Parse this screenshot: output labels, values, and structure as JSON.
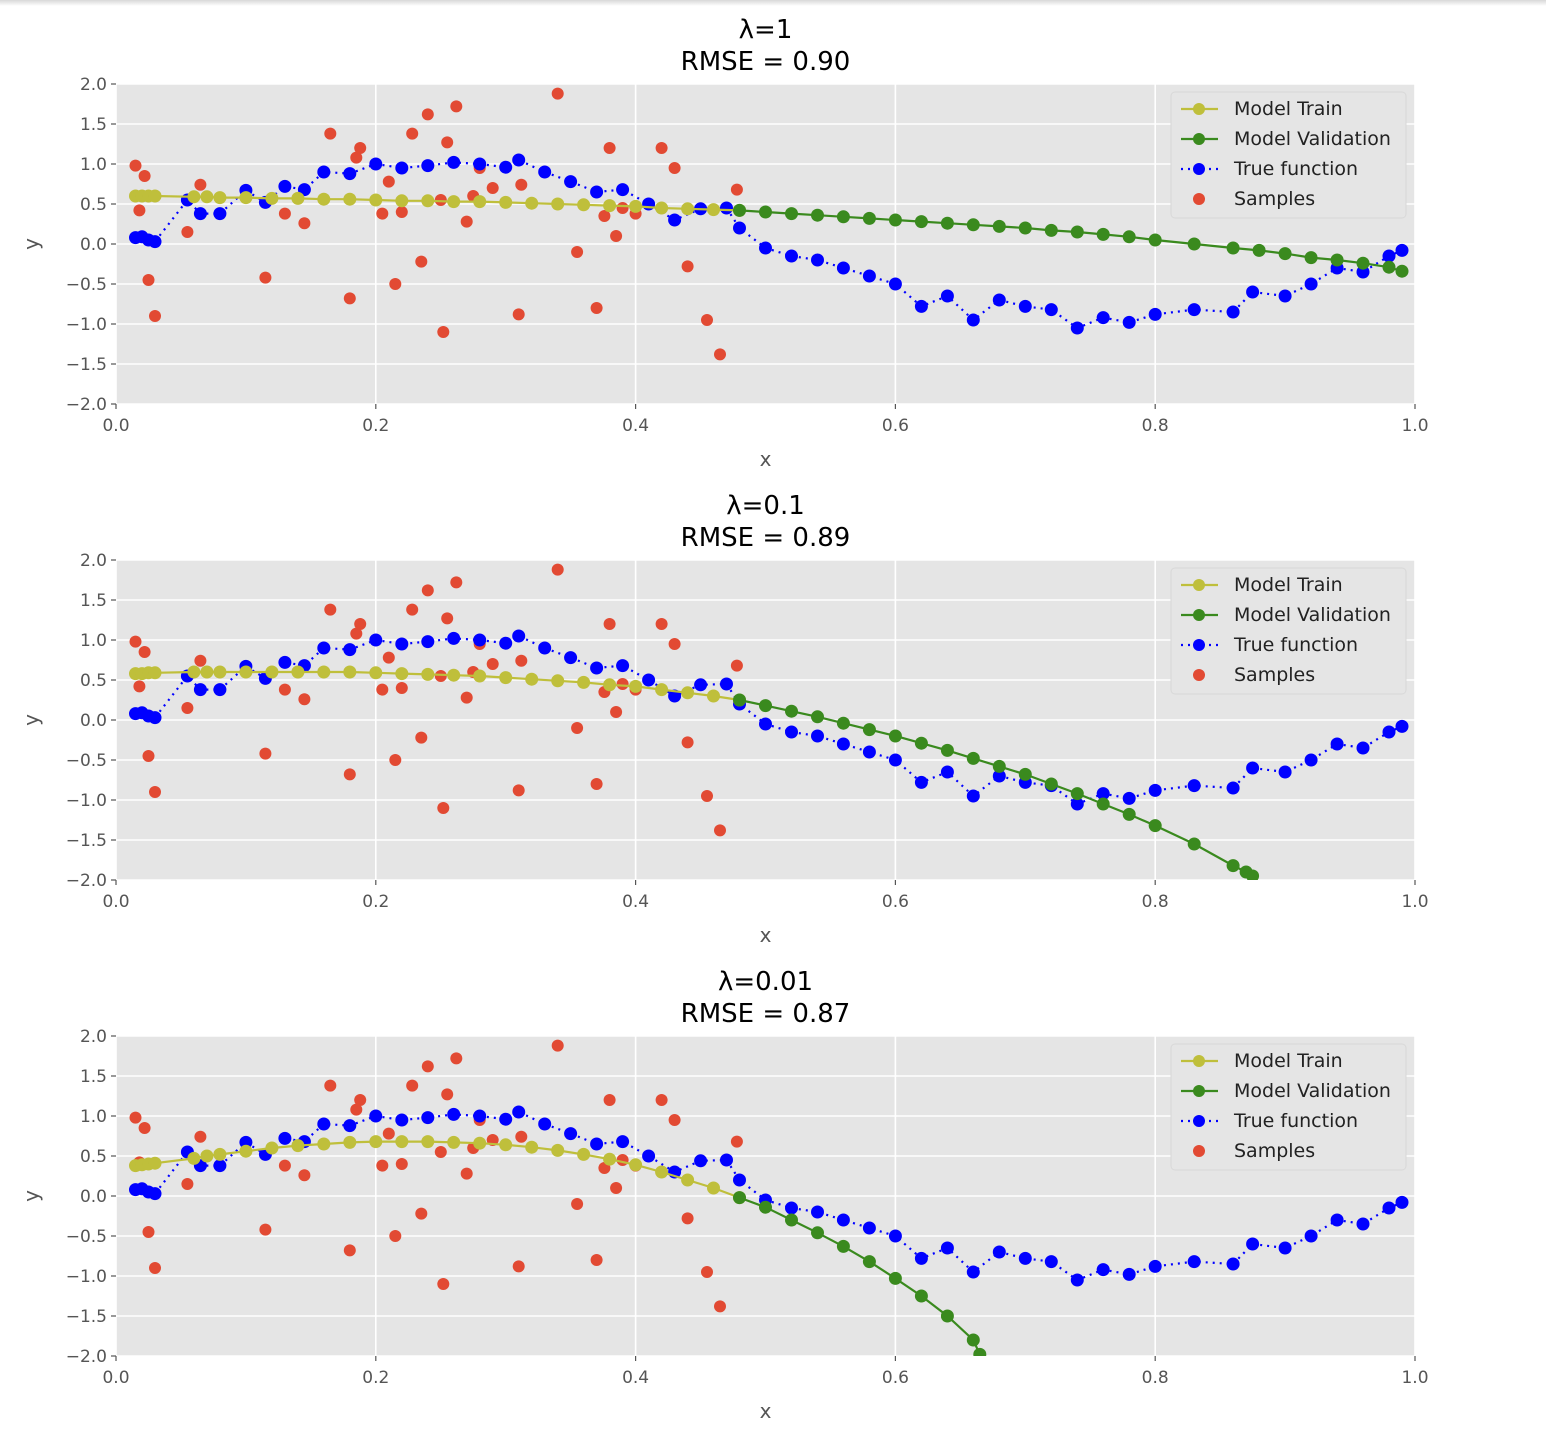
{
  "chart_data": [
    {
      "type": "line",
      "title": "λ=1",
      "subtitle": "RMSE = 0.90",
      "xlabel": "x",
      "ylabel": "y",
      "xlim": [
        0.0,
        1.0
      ],
      "ylim": [
        -2.0,
        2.0
      ],
      "xticks": [
        "0.0",
        "0.2",
        "0.4",
        "0.6",
        "0.8",
        "1.0"
      ],
      "yticks": [
        "2.0",
        "1.5",
        "1.0",
        "0.5",
        "0.0",
        "−0.5",
        "−1.0",
        "−1.5",
        "−2.0"
      ],
      "grid": true,
      "legend": "top-right",
      "series": [
        {
          "name": "Model Train",
          "color": "#bfbf3b",
          "style": "solid-marker",
          "x": [
            0.015,
            0.02,
            0.025,
            0.03,
            0.06,
            0.07,
            0.08,
            0.1,
            0.12,
            0.14,
            0.16,
            0.18,
            0.2,
            0.22,
            0.24,
            0.26,
            0.28,
            0.3,
            0.32,
            0.34,
            0.36,
            0.38,
            0.4,
            0.42,
            0.44,
            0.46,
            0.48
          ],
          "y": [
            0.6,
            0.6,
            0.6,
            0.6,
            0.59,
            0.59,
            0.58,
            0.58,
            0.57,
            0.57,
            0.56,
            0.56,
            0.55,
            0.54,
            0.54,
            0.53,
            0.53,
            0.52,
            0.51,
            0.5,
            0.49,
            0.48,
            0.47,
            0.45,
            0.44,
            0.43,
            0.42
          ]
        },
        {
          "name": "Model Validation",
          "color": "#3a8a1e",
          "style": "solid-marker",
          "x": [
            0.48,
            0.5,
            0.52,
            0.54,
            0.56,
            0.58,
            0.6,
            0.62,
            0.64,
            0.66,
            0.68,
            0.7,
            0.72,
            0.74,
            0.76,
            0.78,
            0.8,
            0.83,
            0.86,
            0.88,
            0.9,
            0.92,
            0.94,
            0.96,
            0.98,
            0.99
          ],
          "y": [
            0.42,
            0.4,
            0.38,
            0.36,
            0.34,
            0.32,
            0.3,
            0.28,
            0.26,
            0.24,
            0.22,
            0.2,
            0.17,
            0.15,
            0.12,
            0.09,
            0.05,
            0.0,
            -0.05,
            -0.08,
            -0.12,
            -0.17,
            -0.2,
            -0.24,
            -0.29,
            -0.34
          ]
        },
        {
          "name": "True function",
          "color": "#0000ff",
          "style": "dotted-marker",
          "x": [
            0.015,
            0.02,
            0.025,
            0.03,
            0.055,
            0.065,
            0.08,
            0.1,
            0.115,
            0.13,
            0.145,
            0.16,
            0.18,
            0.2,
            0.22,
            0.24,
            0.26,
            0.28,
            0.3,
            0.31,
            0.33,
            0.35,
            0.37,
            0.39,
            0.41,
            0.43,
            0.45,
            0.47,
            0.48,
            0.5,
            0.52,
            0.54,
            0.56,
            0.58,
            0.6,
            0.62,
            0.64,
            0.66,
            0.68,
            0.7,
            0.72,
            0.74,
            0.76,
            0.78,
            0.8,
            0.83,
            0.86,
            0.875,
            0.9,
            0.92,
            0.94,
            0.96,
            0.98,
            0.99
          ],
          "y": [
            0.08,
            0.09,
            0.05,
            0.03,
            0.55,
            0.38,
            0.38,
            0.67,
            0.52,
            0.72,
            0.68,
            0.9,
            0.88,
            1.0,
            0.95,
            0.98,
            1.02,
            1.0,
            0.96,
            1.05,
            0.9,
            0.78,
            0.65,
            0.68,
            0.5,
            0.3,
            0.44,
            0.45,
            0.2,
            -0.05,
            -0.15,
            -0.2,
            -0.3,
            -0.4,
            -0.5,
            -0.78,
            -0.65,
            -0.95,
            -0.7,
            -0.78,
            -0.82,
            -1.05,
            -0.92,
            -0.98,
            -0.88,
            -0.82,
            -0.85,
            -0.6,
            -0.65,
            -0.5,
            -0.3,
            -0.35,
            -0.15,
            -0.08
          ]
        },
        {
          "name": "Samples",
          "color": "#e24a33",
          "style": "scatter",
          "x": [
            0.015,
            0.018,
            0.022,
            0.025,
            0.03,
            0.055,
            0.065,
            0.115,
            0.13,
            0.145,
            0.165,
            0.18,
            0.185,
            0.188,
            0.205,
            0.21,
            0.215,
            0.22,
            0.228,
            0.235,
            0.24,
            0.25,
            0.252,
            0.255,
            0.262,
            0.27,
            0.275,
            0.28,
            0.29,
            0.31,
            0.312,
            0.34,
            0.355,
            0.37,
            0.376,
            0.38,
            0.385,
            0.39,
            0.4,
            0.42,
            0.43,
            0.44,
            0.455,
            0.465,
            0.478
          ],
          "y": [
            0.98,
            0.42,
            0.85,
            -0.45,
            -0.9,
            0.15,
            0.74,
            -0.42,
            0.38,
            0.26,
            1.38,
            -0.68,
            1.08,
            1.2,
            0.38,
            0.78,
            -0.5,
            0.4,
            1.38,
            -0.22,
            1.62,
            0.55,
            -1.1,
            1.27,
            1.72,
            0.28,
            0.6,
            0.95,
            0.7,
            -0.88,
            0.74,
            1.88,
            -0.1,
            -0.8,
            0.35,
            1.2,
            0.1,
            0.45,
            0.38,
            1.2,
            0.95,
            -0.28,
            -0.95,
            -1.38,
            0.68
          ]
        }
      ]
    },
    {
      "type": "line",
      "title": "λ=0.1",
      "subtitle": "RMSE = 0.89",
      "xlabel": "x",
      "ylabel": "y",
      "xlim": [
        0.0,
        1.0
      ],
      "ylim": [
        -2.0,
        2.0
      ],
      "xticks": [
        "0.0",
        "0.2",
        "0.4",
        "0.6",
        "0.8",
        "1.0"
      ],
      "yticks": [
        "2.0",
        "1.5",
        "1.0",
        "0.5",
        "0.0",
        "−0.5",
        "−1.0",
        "−1.5",
        "−2.0"
      ],
      "grid": true,
      "legend": "top-right",
      "series": [
        {
          "name": "Model Train",
          "color": "#bfbf3b",
          "style": "solid-marker",
          "x": [
            0.015,
            0.02,
            0.025,
            0.03,
            0.06,
            0.07,
            0.08,
            0.1,
            0.12,
            0.14,
            0.16,
            0.18,
            0.2,
            0.22,
            0.24,
            0.26,
            0.28,
            0.3,
            0.32,
            0.34,
            0.36,
            0.38,
            0.4,
            0.42,
            0.44,
            0.46,
            0.48
          ],
          "y": [
            0.58,
            0.58,
            0.59,
            0.59,
            0.6,
            0.6,
            0.6,
            0.6,
            0.6,
            0.6,
            0.6,
            0.6,
            0.59,
            0.58,
            0.57,
            0.56,
            0.55,
            0.53,
            0.51,
            0.49,
            0.47,
            0.44,
            0.42,
            0.38,
            0.34,
            0.3,
            0.25
          ]
        },
        {
          "name": "Model Validation",
          "color": "#3a8a1e",
          "style": "solid-marker",
          "x": [
            0.48,
            0.5,
            0.52,
            0.54,
            0.56,
            0.58,
            0.6,
            0.62,
            0.64,
            0.66,
            0.68,
            0.7,
            0.72,
            0.74,
            0.76,
            0.78,
            0.8,
            0.83,
            0.86,
            0.87,
            0.875
          ],
          "y": [
            0.25,
            0.18,
            0.11,
            0.04,
            -0.04,
            -0.12,
            -0.2,
            -0.29,
            -0.38,
            -0.48,
            -0.58,
            -0.68,
            -0.8,
            -0.92,
            -1.05,
            -1.18,
            -1.32,
            -1.55,
            -1.82,
            -1.9,
            -1.95
          ]
        },
        {
          "name": "True function",
          "color": "#0000ff",
          "style": "dotted-marker",
          "x": [
            0.015,
            0.02,
            0.025,
            0.03,
            0.055,
            0.065,
            0.08,
            0.1,
            0.115,
            0.13,
            0.145,
            0.16,
            0.18,
            0.2,
            0.22,
            0.24,
            0.26,
            0.28,
            0.3,
            0.31,
            0.33,
            0.35,
            0.37,
            0.39,
            0.41,
            0.43,
            0.45,
            0.47,
            0.48,
            0.5,
            0.52,
            0.54,
            0.56,
            0.58,
            0.6,
            0.62,
            0.64,
            0.66,
            0.68,
            0.7,
            0.72,
            0.74,
            0.76,
            0.78,
            0.8,
            0.83,
            0.86,
            0.875,
            0.9,
            0.92,
            0.94,
            0.96,
            0.98,
            0.99
          ],
          "y": [
            0.08,
            0.09,
            0.05,
            0.03,
            0.55,
            0.38,
            0.38,
            0.67,
            0.52,
            0.72,
            0.68,
            0.9,
            0.88,
            1.0,
            0.95,
            0.98,
            1.02,
            1.0,
            0.96,
            1.05,
            0.9,
            0.78,
            0.65,
            0.68,
            0.5,
            0.3,
            0.44,
            0.45,
            0.2,
            -0.05,
            -0.15,
            -0.2,
            -0.3,
            -0.4,
            -0.5,
            -0.78,
            -0.65,
            -0.95,
            -0.7,
            -0.78,
            -0.82,
            -1.05,
            -0.92,
            -0.98,
            -0.88,
            -0.82,
            -0.85,
            -0.6,
            -0.65,
            -0.5,
            -0.3,
            -0.35,
            -0.15,
            -0.08
          ]
        },
        {
          "name": "Samples",
          "color": "#e24a33",
          "style": "scatter",
          "x": [
            0.015,
            0.018,
            0.022,
            0.025,
            0.03,
            0.055,
            0.065,
            0.115,
            0.13,
            0.145,
            0.165,
            0.18,
            0.185,
            0.188,
            0.205,
            0.21,
            0.215,
            0.22,
            0.228,
            0.235,
            0.24,
            0.25,
            0.252,
            0.255,
            0.262,
            0.27,
            0.275,
            0.28,
            0.29,
            0.31,
            0.312,
            0.34,
            0.355,
            0.37,
            0.376,
            0.38,
            0.385,
            0.39,
            0.4,
            0.42,
            0.43,
            0.44,
            0.455,
            0.465,
            0.478
          ],
          "y": [
            0.98,
            0.42,
            0.85,
            -0.45,
            -0.9,
            0.15,
            0.74,
            -0.42,
            0.38,
            0.26,
            1.38,
            -0.68,
            1.08,
            1.2,
            0.38,
            0.78,
            -0.5,
            0.4,
            1.38,
            -0.22,
            1.62,
            0.55,
            -1.1,
            1.27,
            1.72,
            0.28,
            0.6,
            0.95,
            0.7,
            -0.88,
            0.74,
            1.88,
            -0.1,
            -0.8,
            0.35,
            1.2,
            0.1,
            0.45,
            0.38,
            1.2,
            0.95,
            -0.28,
            -0.95,
            -1.38,
            0.68
          ]
        }
      ]
    },
    {
      "type": "line",
      "title": "λ=0.01",
      "subtitle": "RMSE = 0.87",
      "xlabel": "x",
      "ylabel": "y",
      "xlim": [
        0.0,
        1.0
      ],
      "ylim": [
        -2.0,
        2.0
      ],
      "xticks": [
        "0.0",
        "0.2",
        "0.4",
        "0.6",
        "0.8",
        "1.0"
      ],
      "yticks": [
        "2.0",
        "1.5",
        "1.0",
        "0.5",
        "0.0",
        "−0.5",
        "−1.0",
        "−1.5",
        "−2.0"
      ],
      "grid": true,
      "legend": "top-right",
      "series": [
        {
          "name": "Model Train",
          "color": "#bfbf3b",
          "style": "solid-marker",
          "x": [
            0.015,
            0.02,
            0.025,
            0.03,
            0.06,
            0.07,
            0.08,
            0.1,
            0.12,
            0.14,
            0.16,
            0.18,
            0.2,
            0.22,
            0.24,
            0.26,
            0.28,
            0.3,
            0.32,
            0.34,
            0.36,
            0.38,
            0.4,
            0.42,
            0.44,
            0.46,
            0.48
          ],
          "y": [
            0.38,
            0.39,
            0.4,
            0.41,
            0.47,
            0.5,
            0.52,
            0.56,
            0.6,
            0.63,
            0.65,
            0.67,
            0.68,
            0.68,
            0.68,
            0.67,
            0.66,
            0.64,
            0.61,
            0.57,
            0.52,
            0.46,
            0.39,
            0.3,
            0.2,
            0.1,
            -0.02
          ]
        },
        {
          "name": "Model Validation",
          "color": "#3a8a1e",
          "style": "solid-marker",
          "x": [
            0.48,
            0.5,
            0.52,
            0.54,
            0.56,
            0.58,
            0.6,
            0.62,
            0.64,
            0.66,
            0.665
          ],
          "y": [
            -0.02,
            -0.14,
            -0.3,
            -0.46,
            -0.63,
            -0.82,
            -1.03,
            -1.25,
            -1.5,
            -1.8,
            -1.98
          ]
        },
        {
          "name": "True function",
          "color": "#0000ff",
          "style": "dotted-marker",
          "x": [
            0.015,
            0.02,
            0.025,
            0.03,
            0.055,
            0.065,
            0.08,
            0.1,
            0.115,
            0.13,
            0.145,
            0.16,
            0.18,
            0.2,
            0.22,
            0.24,
            0.26,
            0.28,
            0.3,
            0.31,
            0.33,
            0.35,
            0.37,
            0.39,
            0.41,
            0.43,
            0.45,
            0.47,
            0.48,
            0.5,
            0.52,
            0.54,
            0.56,
            0.58,
            0.6,
            0.62,
            0.64,
            0.66,
            0.68,
            0.7,
            0.72,
            0.74,
            0.76,
            0.78,
            0.8,
            0.83,
            0.86,
            0.875,
            0.9,
            0.92,
            0.94,
            0.96,
            0.98,
            0.99
          ],
          "y": [
            0.08,
            0.09,
            0.05,
            0.03,
            0.55,
            0.38,
            0.38,
            0.67,
            0.52,
            0.72,
            0.68,
            0.9,
            0.88,
            1.0,
            0.95,
            0.98,
            1.02,
            1.0,
            0.96,
            1.05,
            0.9,
            0.78,
            0.65,
            0.68,
            0.5,
            0.3,
            0.44,
            0.45,
            0.2,
            -0.05,
            -0.15,
            -0.2,
            -0.3,
            -0.4,
            -0.5,
            -0.78,
            -0.65,
            -0.95,
            -0.7,
            -0.78,
            -0.82,
            -1.05,
            -0.92,
            -0.98,
            -0.88,
            -0.82,
            -0.85,
            -0.6,
            -0.65,
            -0.5,
            -0.3,
            -0.35,
            -0.15,
            -0.08
          ]
        },
        {
          "name": "Samples",
          "color": "#e24a33",
          "style": "scatter",
          "x": [
            0.015,
            0.018,
            0.022,
            0.025,
            0.03,
            0.055,
            0.065,
            0.115,
            0.13,
            0.145,
            0.165,
            0.18,
            0.185,
            0.188,
            0.205,
            0.21,
            0.215,
            0.22,
            0.228,
            0.235,
            0.24,
            0.25,
            0.252,
            0.255,
            0.262,
            0.27,
            0.275,
            0.28,
            0.29,
            0.31,
            0.312,
            0.34,
            0.355,
            0.37,
            0.376,
            0.38,
            0.385,
            0.39,
            0.4,
            0.42,
            0.43,
            0.44,
            0.455,
            0.465,
            0.478
          ],
          "y": [
            0.98,
            0.42,
            0.85,
            -0.45,
            -0.9,
            0.15,
            0.74,
            -0.42,
            0.38,
            0.26,
            1.38,
            -0.68,
            1.08,
            1.2,
            0.38,
            0.78,
            -0.5,
            0.4,
            1.38,
            -0.22,
            1.62,
            0.55,
            -1.1,
            1.27,
            1.72,
            0.28,
            0.6,
            0.95,
            0.7,
            -0.88,
            0.74,
            1.88,
            -0.1,
            -0.8,
            0.35,
            1.2,
            0.1,
            0.45,
            0.38,
            1.2,
            0.95,
            -0.28,
            -0.95,
            -1.38,
            0.68
          ]
        }
      ]
    }
  ]
}
